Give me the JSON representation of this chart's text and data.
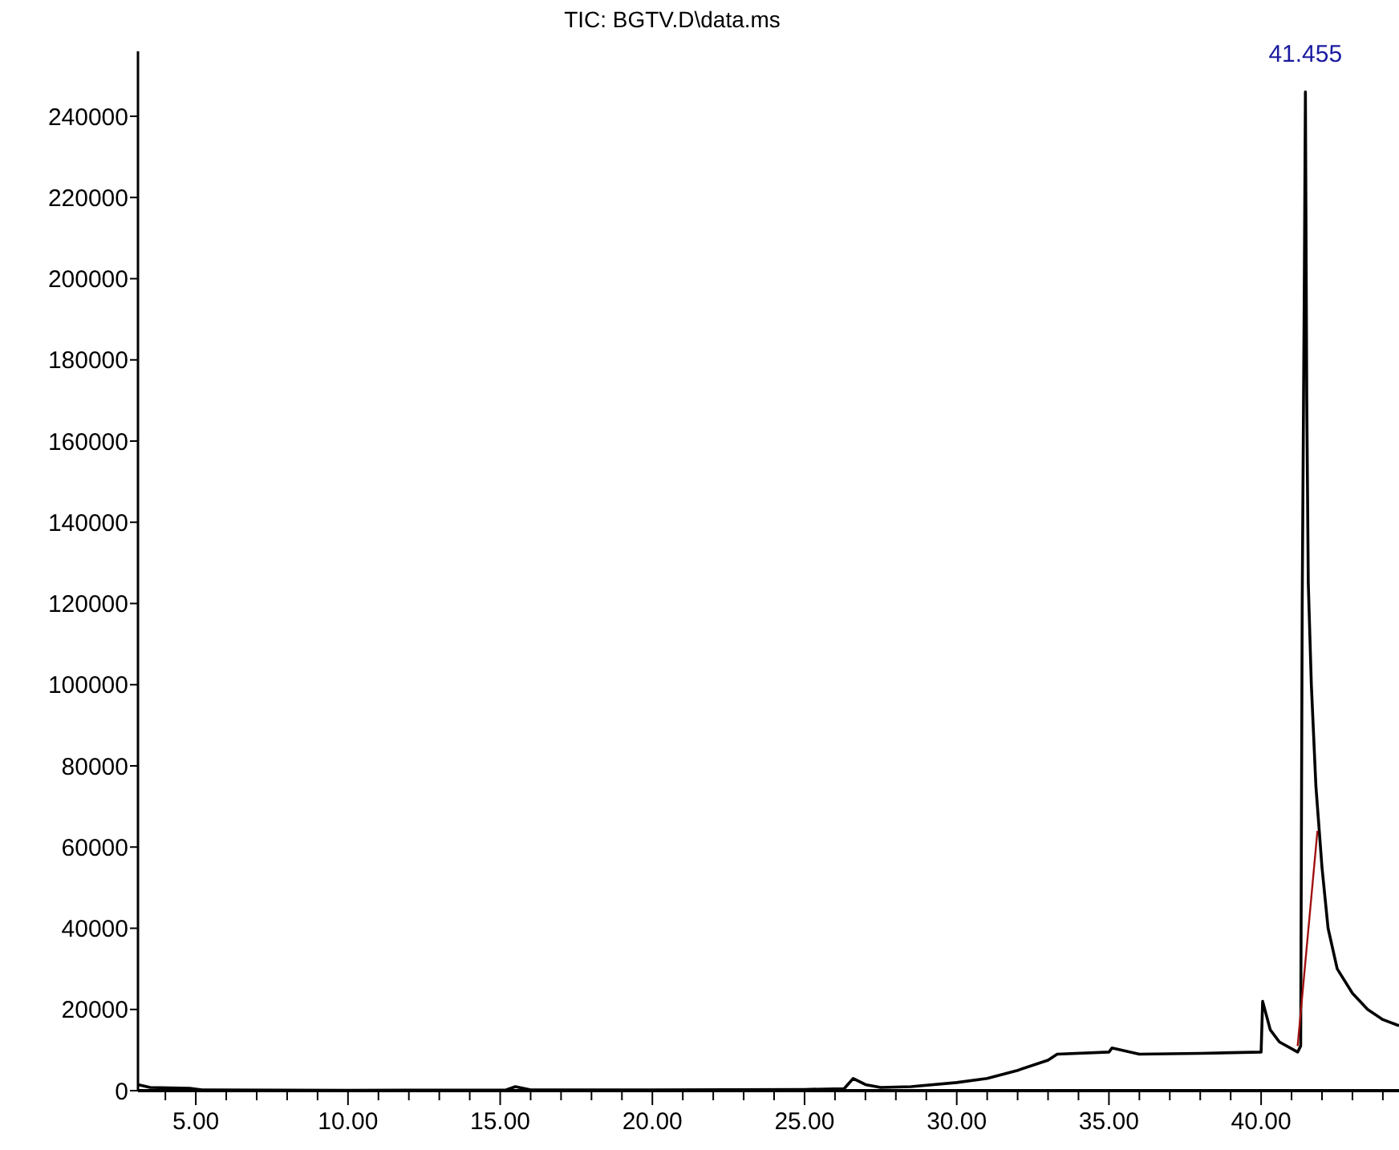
{
  "chart_data": {
    "type": "line",
    "title": "TIC: BGTV.D\\data.ms",
    "series": [
      {
        "color": "#000000",
        "x": [
          3.1,
          3.5,
          4.8,
          5.2,
          10,
          15.2,
          15.5,
          16,
          20,
          25,
          26.3,
          26.6,
          27,
          27.5,
          28.5,
          30,
          31,
          32,
          33,
          33.3,
          35,
          35.1,
          36,
          38,
          40,
          40.05,
          40.3,
          40.6,
          41.2,
          41.3,
          41.35,
          41.42,
          41.455,
          41.5,
          41.55,
          41.65,
          41.8,
          42,
          42.2,
          42.5,
          43,
          43.5,
          44,
          44.53
        ],
        "values": [
          1500,
          800,
          600,
          200,
          100,
          200,
          1000,
          200,
          200,
          300,
          500,
          3000,
          1500,
          800,
          1000,
          2000,
          3000,
          5000,
          7500,
          9000,
          9500,
          10500,
          9000,
          9200,
          9500,
          22000,
          15000,
          12000,
          9500,
          11000,
          120000,
          200000,
          246000,
          170000,
          125000,
          100000,
          75000,
          55000,
          40000,
          30000,
          24000,
          20000,
          17500,
          16000
        ]
      },
      {
        "color": "#a01010",
        "x": [
          41.2,
          41.85
        ],
        "values": [
          11000,
          64000
        ]
      }
    ],
    "annotations": [
      {
        "text": "41.455",
        "x": 41.455,
        "y": 246000
      }
    ],
    "xlim": [
      3.1,
      44.53
    ],
    "ylim": [
      0,
      256000
    ],
    "xticks": [
      {
        "value": 4,
        "label": null
      },
      {
        "value": 5,
        "label": "5.00"
      },
      {
        "value": 6,
        "label": null
      },
      {
        "value": 7,
        "label": null
      },
      {
        "value": 8,
        "label": null
      },
      {
        "value": 9,
        "label": null
      },
      {
        "value": 10,
        "label": "10.00"
      },
      {
        "value": 11,
        "label": null
      },
      {
        "value": 12,
        "label": null
      },
      {
        "value": 13,
        "label": null
      },
      {
        "value": 14,
        "label": null
      },
      {
        "value": 15,
        "label": "15.00"
      },
      {
        "value": 16,
        "label": null
      },
      {
        "value": 17,
        "label": null
      },
      {
        "value": 18,
        "label": null
      },
      {
        "value": 19,
        "label": null
      },
      {
        "value": 20,
        "label": "20.00"
      },
      {
        "value": 21,
        "label": null
      },
      {
        "value": 22,
        "label": null
      },
      {
        "value": 23,
        "label": null
      },
      {
        "value": 24,
        "label": null
      },
      {
        "value": 25,
        "label": "25.00"
      },
      {
        "value": 26,
        "label": null
      },
      {
        "value": 27,
        "label": null
      },
      {
        "value": 28,
        "label": null
      },
      {
        "value": 29,
        "label": null
      },
      {
        "value": 30,
        "label": "30.00"
      },
      {
        "value": 31,
        "label": null
      },
      {
        "value": 32,
        "label": null
      },
      {
        "value": 33,
        "label": null
      },
      {
        "value": 34,
        "label": null
      },
      {
        "value": 35,
        "label": "35.00"
      },
      {
        "value": 36,
        "label": null
      },
      {
        "value": 37,
        "label": null
      },
      {
        "value": 38,
        "label": null
      },
      {
        "value": 39,
        "label": null
      },
      {
        "value": 40,
        "label": "40.00"
      },
      {
        "value": 41,
        "label": null
      },
      {
        "value": 42,
        "label": null
      },
      {
        "value": 43,
        "label": null
      },
      {
        "value": 44,
        "label": null
      }
    ],
    "yticks": [
      0,
      20000,
      40000,
      60000,
      80000,
      100000,
      120000,
      140000,
      160000,
      180000,
      200000,
      220000,
      240000
    ],
    "grid": false,
    "marker": "none",
    "line_style": "solid"
  }
}
